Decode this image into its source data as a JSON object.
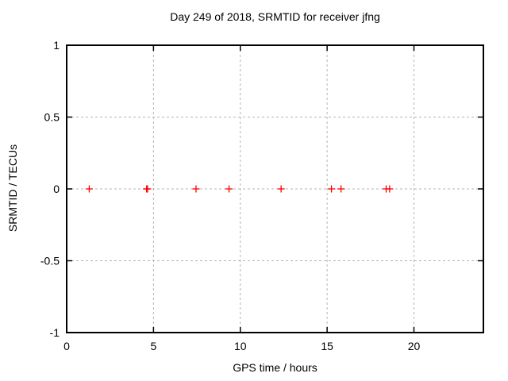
{
  "chart_data": {
    "type": "scatter",
    "title": "Day 249 of 2018, SRMTID for receiver jfng",
    "xlabel": "GPS time / hours",
    "ylabel": "SRMTID / TECUs",
    "xlim": [
      0,
      24
    ],
    "ylim": [
      -1,
      1
    ],
    "xticks": [
      0,
      5,
      10,
      15,
      20
    ],
    "yticks": [
      -1,
      -0.5,
      0,
      0.5,
      1
    ],
    "grid": true,
    "legend": "none",
    "marker": "plus",
    "marker_color": "#ff0000",
    "marker_size": 9,
    "grid_color": "#b4b4b4",
    "frame_color": "#000000",
    "background": "#ffffff",
    "points": [
      {
        "x": 1.3,
        "y": 0
      },
      {
        "x": 4.6,
        "y": 0
      },
      {
        "x": 4.66,
        "y": 0
      },
      {
        "x": 7.45,
        "y": 0
      },
      {
        "x": 9.35,
        "y": 0
      },
      {
        "x": 12.35,
        "y": 0
      },
      {
        "x": 15.25,
        "y": 0
      },
      {
        "x": 15.8,
        "y": 0
      },
      {
        "x": 18.4,
        "y": 0
      },
      {
        "x": 18.6,
        "y": 0
      }
    ]
  }
}
